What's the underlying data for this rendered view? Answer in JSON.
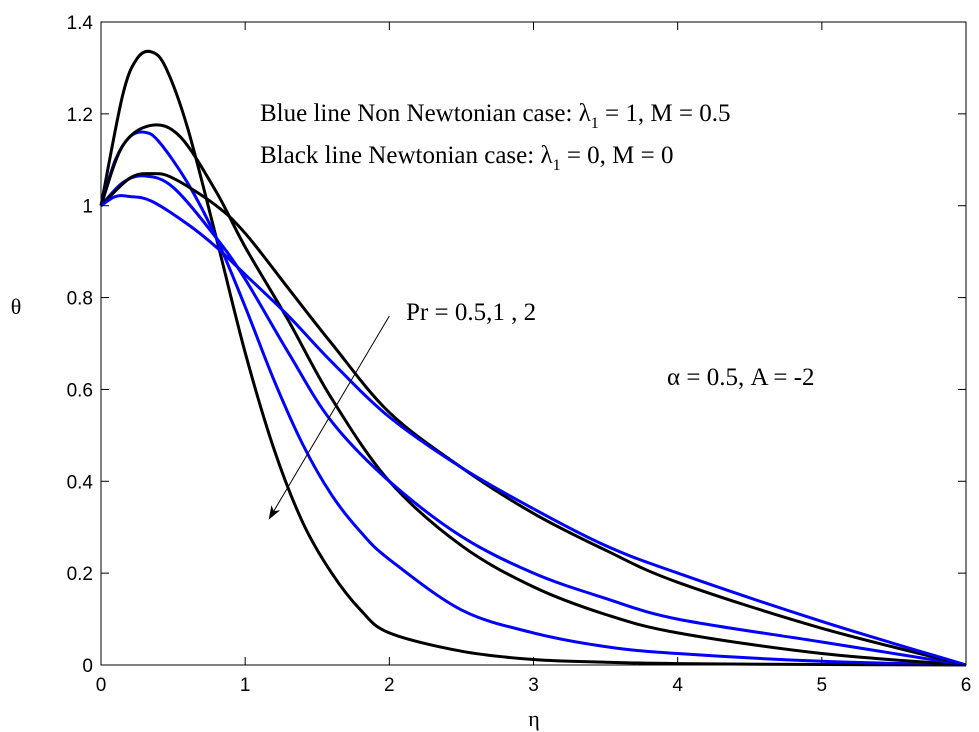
{
  "chart_data": {
    "type": "line",
    "xlabel": "η",
    "ylabel": "θ",
    "xlim": [
      0,
      6
    ],
    "ylim": [
      0,
      1.4
    ],
    "x_ticks": [
      "0",
      "1",
      "2",
      "3",
      "4",
      "5",
      "6"
    ],
    "y_ticks": [
      "0",
      "0.2",
      "0.4",
      "0.6",
      "0.8",
      "1",
      "1.2",
      "1.4"
    ],
    "grid": false,
    "annotations": {
      "blue_line": {
        "main": "Blue line Non Newtonian case: λ",
        "sub": "1",
        "rest": " = 1, M = 0.5"
      },
      "black_line": {
        "main": "Black line Newtonian case: λ",
        "sub": "1",
        "rest": " = 0, M = 0"
      },
      "pr": "Pr = 0.5,1 , 2",
      "params": "α = 0.5, A = -2"
    },
    "arrow": {
      "from": [
        2.0,
        0.76
      ],
      "to": [
        1.17,
        0.32
      ]
    },
    "series": [
      {
        "color": "#000000",
        "x": [
          0,
          0.15,
          0.25,
          0.35,
          0.45,
          0.6,
          0.8,
          1.0,
          1.2,
          1.4,
          1.6,
          1.8,
          2.0,
          2.5,
          3.0,
          3.5,
          4.0,
          5.0,
          6.0
        ],
        "values": [
          1.0,
          1.24,
          1.32,
          1.335,
          1.3,
          1.17,
          0.93,
          0.68,
          0.47,
          0.31,
          0.2,
          0.12,
          0.07,
          0.03,
          0.012,
          0.006,
          0.003,
          0.001,
          0
        ]
      },
      {
        "color": "#0000ff",
        "x": [
          0,
          0.1,
          0.2,
          0.3,
          0.4,
          0.6,
          0.8,
          1.0,
          1.2,
          1.4,
          1.6,
          1.8,
          2.0,
          2.5,
          3.0,
          3.5,
          4.0,
          5.0,
          6.0
        ],
        "values": [
          1.0,
          1.1,
          1.15,
          1.16,
          1.14,
          1.05,
          0.93,
          0.78,
          0.62,
          0.48,
          0.37,
          0.29,
          0.23,
          0.12,
          0.07,
          0.04,
          0.025,
          0.008,
          0
        ]
      },
      {
        "color": "#000000",
        "x": [
          0,
          0.15,
          0.35,
          0.55,
          0.8,
          1.0,
          1.3,
          1.6,
          2.0,
          2.5,
          3.0,
          3.5,
          4.0,
          5.0,
          6.0
        ],
        "values": [
          1.0,
          1.13,
          1.175,
          1.15,
          1.03,
          0.91,
          0.75,
          0.58,
          0.4,
          0.26,
          0.17,
          0.11,
          0.07,
          0.025,
          0
        ]
      },
      {
        "color": "#0000ff",
        "x": [
          0,
          0.15,
          0.3,
          0.5,
          0.8,
          1.0,
          1.3,
          1.6,
          2.0,
          2.5,
          3.0,
          3.5,
          4.0,
          5.0,
          6.0
        ],
        "values": [
          1.0,
          1.05,
          1.065,
          1.04,
          0.93,
          0.84,
          0.68,
          0.53,
          0.4,
          0.28,
          0.2,
          0.145,
          0.1,
          0.05,
          0
        ]
      },
      {
        "color": "#000000",
        "x": [
          0,
          0.2,
          0.35,
          0.5,
          0.8,
          1.0,
          1.3,
          1.6,
          2.0,
          2.5,
          3.0,
          3.5,
          4.0,
          5.0,
          6.0
        ],
        "values": [
          1.0,
          1.06,
          1.07,
          1.06,
          1.0,
          0.94,
          0.82,
          0.7,
          0.55,
          0.43,
          0.33,
          0.25,
          0.18,
          0.08,
          0
        ]
      },
      {
        "color": "#0000ff",
        "x": [
          0,
          0.1,
          0.2,
          0.35,
          0.6,
          0.8,
          1.0,
          1.3,
          1.6,
          2.0,
          2.5,
          3.0,
          3.5,
          4.0,
          5.0,
          6.0
        ],
        "values": [
          1.0,
          1.02,
          1.02,
          1.01,
          0.96,
          0.91,
          0.85,
          0.76,
          0.66,
          0.54,
          0.43,
          0.34,
          0.26,
          0.2,
          0.095,
          0
        ]
      }
    ]
  }
}
